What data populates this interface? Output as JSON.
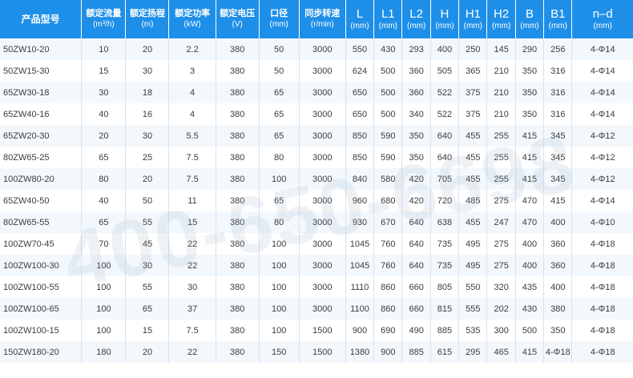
{
  "headers": [
    {
      "line1": "产品型号",
      "line2": ""
    },
    {
      "line1": "额定流量",
      "line2": "(m³/h)"
    },
    {
      "line1": "额定扬程",
      "line2": "(m)"
    },
    {
      "line1": "额定功率",
      "line2": "(kW)"
    },
    {
      "line1": "额定电压",
      "line2": "(V)"
    },
    {
      "line1": "口径",
      "line2": "(mm)"
    },
    {
      "line1": "同步转速",
      "line2": "(r/min)"
    },
    {
      "line1": "L",
      "line2": "(mm)"
    },
    {
      "line1": "L1",
      "line2": "(mm)"
    },
    {
      "line1": "L2",
      "line2": "(mm)"
    },
    {
      "line1": "H",
      "line2": "(mm)"
    },
    {
      "line1": "H1",
      "line2": "(mm)"
    },
    {
      "line1": "H2",
      "line2": "(mm)"
    },
    {
      "line1": "B",
      "line2": "(mm)"
    },
    {
      "line1": "B1",
      "line2": "(mm)"
    },
    {
      "line1": "n–d",
      "line2": "(mm)"
    }
  ],
  "rows": [
    [
      "50ZW10-20",
      "10",
      "20",
      "2.2",
      "380",
      "50",
      "3000",
      "550",
      "430",
      "293",
      "400",
      "250",
      "145",
      "290",
      "256",
      "4-Φ14"
    ],
    [
      "50ZW15-30",
      "15",
      "30",
      "3",
      "380",
      "50",
      "3000",
      "624",
      "500",
      "360",
      "505",
      "365",
      "210",
      "350",
      "316",
      "4-Φ14"
    ],
    [
      "65ZW30-18",
      "30",
      "18",
      "4",
      "380",
      "65",
      "3000",
      "650",
      "500",
      "360",
      "522",
      "375",
      "210",
      "350",
      "316",
      "4-Φ14"
    ],
    [
      "65ZW40-16",
      "40",
      "16",
      "4",
      "380",
      "65",
      "3000",
      "650",
      "500",
      "340",
      "522",
      "375",
      "210",
      "350",
      "316",
      "4-Φ14"
    ],
    [
      "65ZW20-30",
      "20",
      "30",
      "5.5",
      "380",
      "65",
      "3000",
      "850",
      "590",
      "350",
      "640",
      "455",
      "255",
      "415",
      "345",
      "4-Φ12"
    ],
    [
      "80ZW65-25",
      "65",
      "25",
      "7.5",
      "380",
      "80",
      "3000",
      "850",
      "590",
      "350",
      "640",
      "455",
      "255",
      "415",
      "345",
      "4-Φ12"
    ],
    [
      "100ZW80-20",
      "80",
      "20",
      "7.5",
      "380",
      "100",
      "3000",
      "840",
      "580",
      "420",
      "705",
      "455",
      "255",
      "415",
      "345",
      "4-Φ12"
    ],
    [
      "65ZW40-50",
      "40",
      "50",
      "11",
      "380",
      "65",
      "3000",
      "960",
      "680",
      "420",
      "720",
      "485",
      "275",
      "470",
      "415",
      "4-Φ14"
    ],
    [
      "80ZW65-55",
      "65",
      "55",
      "15",
      "380",
      "80",
      "3000",
      "930",
      "670",
      "640",
      "638",
      "455",
      "247",
      "470",
      "400",
      "4-Φ10"
    ],
    [
      "100ZW70-45",
      "70",
      "45",
      "22",
      "380",
      "100",
      "3000",
      "1045",
      "760",
      "640",
      "735",
      "495",
      "275",
      "400",
      "360",
      "4-Φ18"
    ],
    [
      "100ZW100-30",
      "100",
      "30",
      "22",
      "380",
      "100",
      "3000",
      "1045",
      "760",
      "640",
      "735",
      "495",
      "275",
      "400",
      "360",
      "4-Φ18"
    ],
    [
      "100ZW100-55",
      "100",
      "55",
      "30",
      "380",
      "100",
      "3000",
      "1110",
      "860",
      "660",
      "805",
      "550",
      "320",
      "435",
      "400",
      "4-Φ18"
    ],
    [
      "100ZW100-65",
      "100",
      "65",
      "37",
      "380",
      "100",
      "3000",
      "1100",
      "860",
      "660",
      "815",
      "555",
      "202",
      "430",
      "380",
      "4-Φ18"
    ],
    [
      "100ZW100-15",
      "100",
      "15",
      "7.5",
      "380",
      "100",
      "1500",
      "900",
      "690",
      "490",
      "885",
      "535",
      "300",
      "500",
      "350",
      "4-Φ18"
    ],
    [
      "150ZW180-20",
      "180",
      "20",
      "22",
      "380",
      "150",
      "1500",
      "1380",
      "900",
      "885",
      "615",
      "295",
      "465",
      "415",
      "4-Φ18",
      "4-Φ18"
    ]
  ],
  "watermark": "400-650-6698",
  "colors": {
    "header_bg": "#1e8fe8",
    "header_text": "#ffffff",
    "row_alt": "#f3f8fd",
    "text": "#3c3c3c"
  }
}
